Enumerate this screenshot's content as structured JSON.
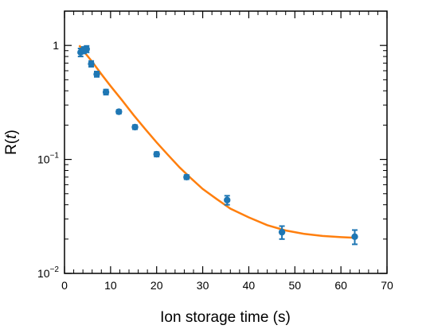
{
  "chart_data": {
    "type": "scatter",
    "xlabel": "Ion storage time (s)",
    "ylabel": {
      "base": "R(",
      "var": "t",
      "close": ")"
    },
    "xlim": [
      0,
      70
    ],
    "ylim": [
      0.01,
      2
    ],
    "y_scale": "log",
    "grid": false,
    "x_ticks": [
      0,
      10,
      20,
      30,
      40,
      50,
      60,
      70
    ],
    "y_ticks": [
      {
        "value": 1,
        "label": "1",
        "exp": ""
      },
      {
        "value": 0.1,
        "label": "10",
        "exp": "−1"
      },
      {
        "value": 0.01,
        "label": "10",
        "exp": "−2"
      }
    ],
    "series": [
      {
        "kind": "points",
        "color": "#1f77b4",
        "x": [
          3.5,
          4.2,
          4.8,
          5.8,
          7.0,
          9.0,
          11.8,
          15.3,
          20.0,
          26.5,
          35.3,
          47.2,
          63.0
        ],
        "y": [
          0.87,
          0.91,
          0.93,
          0.69,
          0.56,
          0.39,
          0.262,
          0.192,
          0.111,
          0.07,
          0.044,
          0.023,
          0.021
        ],
        "yerr": [
          0.07,
          0.06,
          0.06,
          0.04,
          0.03,
          0.02,
          0.01,
          0.008,
          0.005,
          0.003,
          0.004,
          0.003,
          0.003
        ]
      },
      {
        "kind": "fit",
        "color": "#ff7f0e",
        "x": [
          3.2,
          4.5,
          6,
          8,
          10,
          12.5,
          15,
          17.5,
          20,
          22.5,
          25,
          27.5,
          30,
          33,
          36,
          40,
          44,
          48,
          52,
          56,
          60,
          63.3
        ],
        "y": [
          1.0,
          0.855,
          0.72,
          0.56,
          0.44,
          0.33,
          0.245,
          0.185,
          0.141,
          0.109,
          0.085,
          0.068,
          0.055,
          0.045,
          0.037,
          0.031,
          0.0265,
          0.0238,
          0.0222,
          0.0213,
          0.0208,
          0.0205
        ]
      }
    ]
  }
}
